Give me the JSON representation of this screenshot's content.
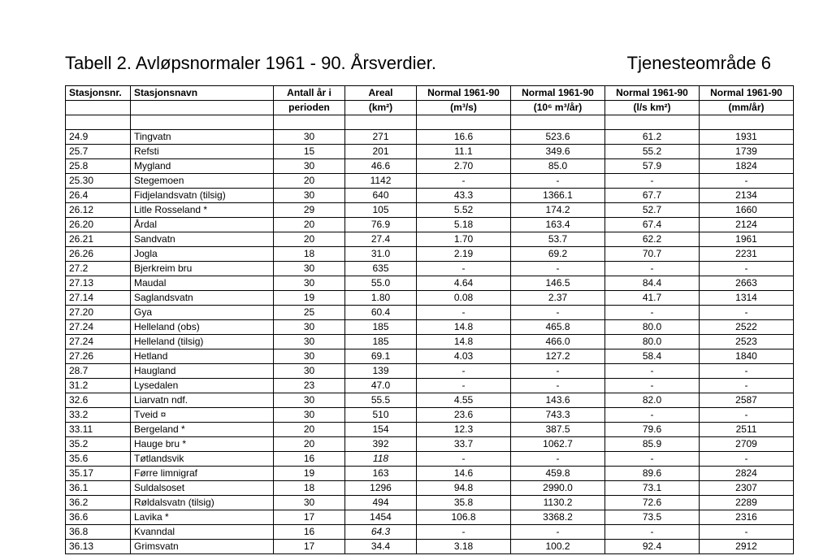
{
  "title_left": "Tabell 2. Avløpsnormaler 1961 - 90. Årsverdier.",
  "title_right": "Tjenesteområde 6",
  "columns_row1": [
    "Stasjonsnr.",
    "Stasjonsnavn",
    "Antall år i",
    "Areal",
    "Normal 1961-90",
    "Normal 1961-90",
    "Normal 1961-90",
    "Normal 1961-90"
  ],
  "columns_row2": [
    "",
    "",
    "perioden",
    "(km²)",
    "(m³/s)",
    "(10⁶ m³/år)",
    "(l/s km²)",
    "(mm/år)"
  ],
  "rows": [
    [
      "24.9",
      "Tingvatn",
      "30",
      "271",
      "16.6",
      "523.6",
      "61.2",
      "1931"
    ],
    [
      "25.7",
      "Refsti",
      "15",
      "201",
      "11.1",
      "349.6",
      "55.2",
      "1739"
    ],
    [
      "25.8",
      "Mygland",
      "30",
      "46.6",
      "2.70",
      "85.0",
      "57.9",
      "1824"
    ],
    [
      "25.30",
      "Stegemoen",
      "20",
      "1142",
      "-",
      "-",
      "-",
      "-"
    ],
    [
      "26.4",
      "Fidjelandsvatn (tilsig)",
      "30",
      "640",
      "43.3",
      "1366.1",
      "67.7",
      "2134"
    ],
    [
      "26.12",
      "Litle Rosseland *",
      "29",
      "105",
      "5.52",
      "174.2",
      "52.7",
      "1660"
    ],
    [
      "26.20",
      "Årdal",
      "20",
      "76.9",
      "5.18",
      "163.4",
      "67.4",
      "2124"
    ],
    [
      "26.21",
      "Sandvatn",
      "20",
      "27.4",
      "1.70",
      "53.7",
      "62.2",
      "1961"
    ],
    [
      "26.26",
      "Jogla",
      "18",
      "31.0",
      "2.19",
      "69.2",
      "70.7",
      "2231"
    ],
    [
      "27.2",
      "Bjerkreim bru",
      "30",
      "635",
      "-",
      "-",
      "-",
      "-"
    ],
    [
      "27.13",
      "Maudal",
      "30",
      "55.0",
      "4.64",
      "146.5",
      "84.4",
      "2663"
    ],
    [
      "27.14",
      "Saglandsvatn",
      "19",
      "1.80",
      "0.08",
      "2.37",
      "41.7",
      "1314"
    ],
    [
      "27.20",
      "Gya",
      "25",
      "60.4",
      "-",
      "-",
      "-",
      "-"
    ],
    [
      "27.24",
      "Helleland (obs)",
      "30",
      "185",
      "14.8",
      "465.8",
      "80.0",
      "2522"
    ],
    [
      "27.24",
      "Helleland (tilsig)",
      "30",
      "185",
      "14.8",
      "466.0",
      "80.0",
      "2523"
    ],
    [
      "27.26",
      "Hetland",
      "30",
      "69.1",
      "4.03",
      "127.2",
      "58.4",
      "1840"
    ],
    [
      "28.7",
      "Haugland",
      "30",
      "139",
      "-",
      "-",
      "-",
      "-"
    ],
    [
      "31.2",
      "Lysedalen",
      "23",
      "47.0",
      "-",
      "-",
      "-",
      "-"
    ],
    [
      "32.6",
      "Liarvatn ndf.",
      "30",
      "55.5",
      "4.55",
      "143.6",
      "82.0",
      "2587"
    ],
    [
      "33.2",
      "Tveid ¤",
      "30",
      "510",
      "23.6",
      "743.3",
      "-",
      "-"
    ],
    [
      "33.11",
      "Bergeland *",
      "20",
      "154",
      "12.3",
      "387.5",
      "79.6",
      "2511"
    ],
    [
      "35.2",
      "Hauge bru *",
      "20",
      "392",
      "33.7",
      "1062.7",
      "85.9",
      "2709"
    ],
    [
      "35.6",
      "Tøtlandsvik",
      "16",
      "118",
      "-",
      "-",
      "-",
      "-"
    ],
    [
      "35.17",
      "Førre limnigraf",
      "19",
      "163",
      "14.6",
      "459.8",
      "89.6",
      "2824"
    ],
    [
      "36.1",
      "Suldalsoset",
      "18",
      "1296",
      "94.8",
      "2990.0",
      "73.1",
      "2307"
    ],
    [
      "36.2",
      "Røldalsvatn (tilsig)",
      "30",
      "494",
      "35.8",
      "1130.2",
      "72.6",
      "2289"
    ],
    [
      "36.6",
      "Lavika *",
      "17",
      "1454",
      "106.8",
      "3368.2",
      "73.5",
      "2316"
    ],
    [
      "36.8",
      "Kvanndal",
      "16",
      "64.3",
      "-",
      "-",
      "-",
      "-"
    ],
    [
      "36.13",
      "Grimsvatn",
      "17",
      "34.4",
      "3.18",
      "100.2",
      "92.4",
      "2912"
    ]
  ],
  "italic_cells": [
    {
      "row": 22,
      "col": 3
    },
    {
      "row": 27,
      "col": 3
    }
  ]
}
